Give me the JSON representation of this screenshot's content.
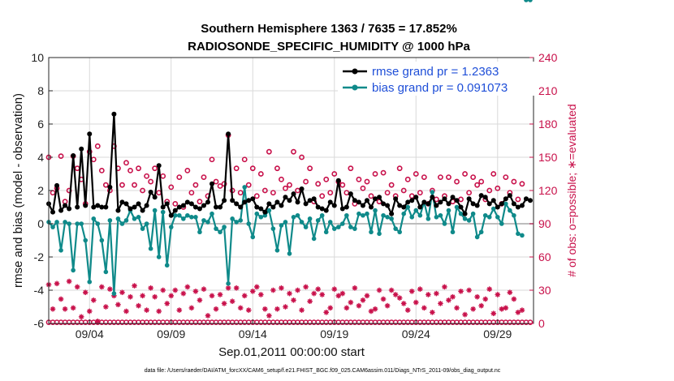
{
  "chart_data": {
    "type": "line",
    "title_line1": "Southern Hemisphere 1363 / 7635 = 17.852%",
    "title_line2": "RADIOSONDE_SPECIFIC_HUMIDITY @ 1000 hPa",
    "ylabel": "rmse and bias (model - observation)",
    "y2label": "# of obs: o=possible; ∗=evaluated",
    "xlabel": "Sep.01,2011 00:00:00 start",
    "footnote": "data file: /Users/raeder/DAI/ATM_forcXX/CAM6_setup/f.e21.FHIST_BGC.f09_025.CAM6assim.011/Diags_NTrS_2011-09/obs_diag_output.nc",
    "ylim": [
      -6,
      10
    ],
    "y2lim": [
      0,
      240
    ],
    "xlim": [
      1.5,
      31.2
    ],
    "yticks": [
      -6,
      -4,
      -2,
      0,
      2,
      4,
      6,
      8,
      10
    ],
    "y2ticks": [
      0,
      30,
      60,
      90,
      120,
      150,
      180,
      210,
      240
    ],
    "xticks": [
      {
        "x": 4,
        "label": "09/04"
      },
      {
        "x": 9,
        "label": "09/09"
      },
      {
        "x": 14,
        "label": "09/14"
      },
      {
        "x": 19,
        "label": "09/19"
      },
      {
        "x": 24,
        "label": "09/24"
      },
      {
        "x": 29,
        "label": "09/29"
      }
    ],
    "x": [
      1.5,
      1.75,
      2.0,
      2.25,
      2.5,
      2.75,
      3.0,
      3.25,
      3.5,
      3.75,
      4.0,
      4.25,
      4.5,
      4.75,
      5.0,
      5.25,
      5.5,
      5.75,
      6.0,
      6.25,
      6.5,
      6.75,
      7.0,
      7.25,
      7.5,
      7.75,
      8.0,
      8.25,
      8.5,
      8.75,
      9.0,
      9.25,
      9.5,
      9.75,
      10.0,
      10.25,
      10.5,
      10.75,
      11.0,
      11.25,
      11.5,
      11.75,
      12.0,
      12.25,
      12.5,
      12.75,
      13.0,
      13.25,
      13.5,
      13.75,
      14.0,
      14.25,
      14.5,
      14.75,
      15.0,
      15.25,
      15.5,
      15.75,
      16.0,
      16.25,
      16.5,
      16.75,
      17.0,
      17.25,
      17.5,
      17.75,
      18.0,
      18.25,
      18.5,
      18.75,
      19.0,
      19.25,
      19.5,
      19.75,
      20.0,
      20.25,
      20.5,
      20.75,
      21.0,
      21.25,
      21.5,
      21.75,
      22.0,
      22.25,
      22.5,
      22.75,
      23.0,
      23.25,
      23.5,
      23.75,
      24.0,
      24.25,
      24.5,
      24.75,
      25.0,
      25.25,
      25.5,
      25.75,
      26.0,
      26.25,
      26.5,
      26.75,
      27.0,
      27.25,
      27.5,
      27.75,
      28.0,
      28.25,
      28.5,
      28.75,
      29.0,
      29.25,
      29.5,
      29.75,
      30.0,
      30.25,
      30.5,
      30.75,
      31.0
    ],
    "series": [
      {
        "name": "rmse grand pr = 1.2363",
        "color": "#000000",
        "marker": "dot",
        "values": [
          1.2,
          0.7,
          2.3,
          0.8,
          1.1,
          0.9,
          4.1,
          1.0,
          4.5,
          1.1,
          5.4,
          1.0,
          1.1,
          1.0,
          1.0,
          2.2,
          6.6,
          0.8,
          1.3,
          1.2,
          0.9,
          1.0,
          1.2,
          0.8,
          1.1,
          1.9,
          1.6,
          3.5,
          1.0,
          1.2,
          0.5,
          0.8,
          1.0,
          1.1,
          1.3,
          1.2,
          1.0,
          0.9,
          1.1,
          1.3,
          2.4,
          1.0,
          1.0,
          1.4,
          5.4,
          1.4,
          1.2,
          1.0,
          1.3,
          1.4,
          1.5,
          1.0,
          0.9,
          0.7,
          1.2,
          1.0,
          1.3,
          1.1,
          1.6,
          1.4,
          1.8,
          1.3,
          2.1,
          1.2,
          1.4,
          1.5,
          1.0,
          0.9,
          0.8,
          1.3,
          1.1,
          2.6,
          0.9,
          1.0,
          1.8,
          1.4,
          1.3,
          1.1,
          1.4,
          1.0,
          1.5,
          1.6,
          1.2,
          1.1,
          0.6,
          1.5,
          1.1,
          1.0,
          1.3,
          1.4,
          1.6,
          1.0,
          1.3,
          1.2,
          1.6,
          1.1,
          1.3,
          1.5,
          1.2,
          1.6,
          1.4,
          1.0,
          0.6,
          1.5,
          1.2,
          1.1,
          1.7,
          1.6,
          1.2,
          1.4,
          1.0,
          1.2,
          1.5,
          1.7,
          1.2,
          1.0,
          1.1,
          1.5,
          1.4
        ],
        "bias": [
          0.1,
          -0.2,
          0.1,
          -1.6,
          0.1,
          0.0,
          -2.8,
          0.0,
          0.0,
          -1.0,
          -3.5,
          0.3,
          0.0,
          -1.0,
          -2.9,
          0.2,
          -4.2,
          0.3,
          0.0,
          0.2,
          0.8,
          0.3,
          0.4,
          -0.3,
          0.0,
          -1.5,
          0.8,
          -2.0,
          0.7,
          -2.5,
          -0.2,
          0.5,
          0.5,
          0.3,
          0.5,
          0.4,
          0.4,
          -0.5,
          0.2,
          0.1,
          0.6,
          -0.3,
          -0.5,
          -0.2,
          -3.6,
          0.3,
          0.1,
          0.2,
          2.2,
          0.0,
          -0.8,
          0.6,
          0.4,
          0.5,
          0.8,
          -0.3,
          -1.6,
          -0.1,
          0.1,
          -1.8,
          0.4,
          0.5,
          0.1,
          -0.2,
          0.3,
          -0.9,
          0.2,
          0.5,
          -0.5,
          0.1,
          -0.3,
          -0.2,
          0.0,
          0.5,
          -0.2,
          -0.3,
          0.6,
          0.5,
          0.6,
          -0.5,
          0.8,
          -0.6,
          0.5,
          0.4,
          0.3,
          -0.3,
          -0.5,
          0.6,
          1.0,
          0.4,
          0.8,
          0.5,
          1.3,
          0.3,
          1.9,
          0.4,
          0.5,
          0.0,
          0.8,
          -0.5,
          1.0,
          0.6,
          0.3,
          0.2,
          0.6,
          -0.8,
          -0.5,
          0.5,
          0.4,
          0.9,
          0.4,
          0.0,
          1.2,
          0.8,
          0.5,
          -0.6,
          -0.7
        ]
      },
      {
        "name": "bias grand pr = 0.091073",
        "color": "#0f8a8a",
        "marker": "dot"
      }
    ],
    "obs_possible": [
      150,
      118,
      122,
      151,
      110,
      120,
      151,
      140,
      130,
      108,
      155,
      148,
      160,
      138,
      125,
      120,
      160,
      140,
      125,
      145,
      138,
      125,
      140,
      120,
      133,
      128,
      140,
      118,
      133,
      110,
      123,
      108,
      132,
      105,
      138,
      118,
      125,
      110,
      132,
      115,
      148,
      128,
      124,
      126,
      170,
      120,
      140,
      118,
      148,
      125,
      140,
      115,
      135,
      120,
      155,
      118,
      140,
      130,
      122,
      125,
      155,
      120,
      150,
      128,
      140,
      110,
      126,
      115,
      130,
      118,
      135,
      128,
      125,
      118,
      140,
      108,
      130,
      122,
      128,
      115,
      135,
      110,
      136,
      118,
      125,
      115,
      140,
      120,
      130,
      115,
      135,
      118,
      132,
      108,
      120,
      112,
      132,
      115,
      132,
      110,
      128,
      112,
      135,
      118,
      132,
      125,
      128,
      112,
      120,
      135,
      122,
      108,
      132,
      118,
      128,
      112,
      126
    ],
    "obs_evaluated": [
      35,
      13,
      36,
      22,
      13,
      38,
      14,
      33,
      6,
      28,
      11,
      21,
      2,
      33,
      15,
      31,
      25,
      17,
      28,
      11,
      24,
      34,
      16,
      25,
      12,
      32,
      24,
      11,
      30,
      18,
      25,
      30,
      12,
      27,
      33,
      14,
      29,
      21,
      31,
      7,
      25,
      13,
      26,
      18,
      32,
      20,
      32,
      14,
      25,
      12,
      29,
      33,
      26,
      13,
      7,
      30,
      13,
      32,
      15,
      27,
      21,
      30,
      12,
      33,
      20,
      27,
      31,
      26,
      10,
      14,
      31,
      25,
      27,
      14,
      19,
      32,
      16,
      21,
      25,
      11,
      13,
      30,
      22,
      16,
      30,
      26,
      23,
      18,
      12,
      29,
      19,
      31,
      14,
      26,
      10,
      27,
      18,
      33,
      21,
      24,
      14,
      29,
      8,
      30,
      13,
      24,
      16,
      22,
      31,
      9,
      26,
      13,
      14,
      28,
      22,
      10,
      12
    ],
    "legend": {
      "rmse": "rmse grand pr = 1.2363",
      "bias": "bias grand pr = 0.091073",
      "placement": "top-right"
    },
    "colors": {
      "rmse": "#000000",
      "bias": "#0f8a8a",
      "obs": "#c8104a",
      "zero_line": "#bdbdbd"
    }
  }
}
